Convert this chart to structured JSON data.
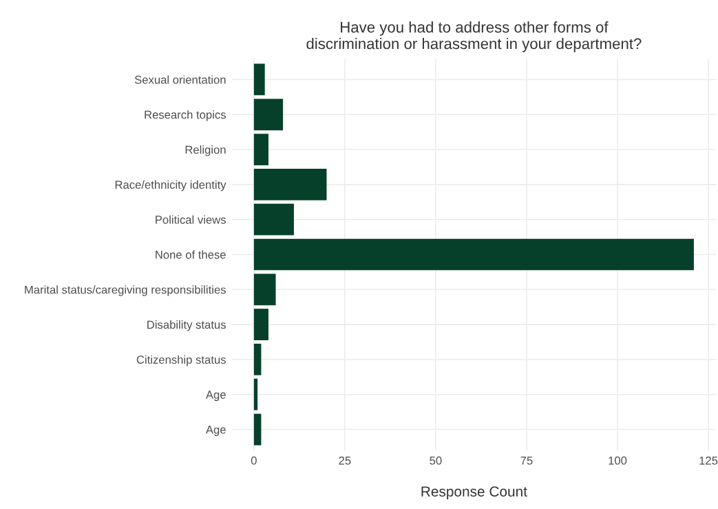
{
  "chart_data": {
    "type": "bar",
    "orientation": "horizontal",
    "title": "Have you had to address other forms of\ndiscrimination or harassment in your department?",
    "xlabel": "Response Count",
    "categories": [
      "Sexual orientation",
      "Research topics",
      "Religion",
      "Race/ethnicity identity",
      "Political views",
      "None of these",
      "Marital status/caregiving responsibilities",
      "Disability status",
      "Citizenship status",
      "Age",
      "Age"
    ],
    "values": [
      3,
      8,
      4,
      20,
      11,
      121,
      6,
      4,
      2,
      1,
      2
    ],
    "color": "#06402b",
    "xlim": [
      -6.05,
      127.05
    ],
    "xticks": [
      0,
      25,
      50,
      75,
      100,
      125
    ],
    "grid": true
  }
}
